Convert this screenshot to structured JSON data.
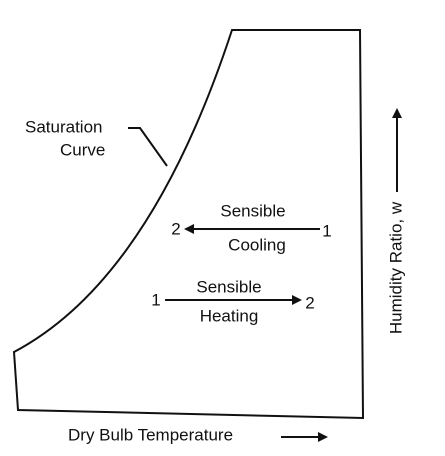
{
  "diagram": {
    "saturation_label": {
      "line1": "Saturation",
      "line2": "Curve"
    },
    "cooling": {
      "label_top": "Sensible",
      "label_bottom": "Cooling",
      "start": "1",
      "end": "2"
    },
    "heating": {
      "label_top": "Sensible",
      "label_bottom": "Heating",
      "start": "1",
      "end": "2"
    },
    "x_axis_label": "Dry Bulb Temperature",
    "y_axis_label": "Humidity Ratio, w"
  }
}
